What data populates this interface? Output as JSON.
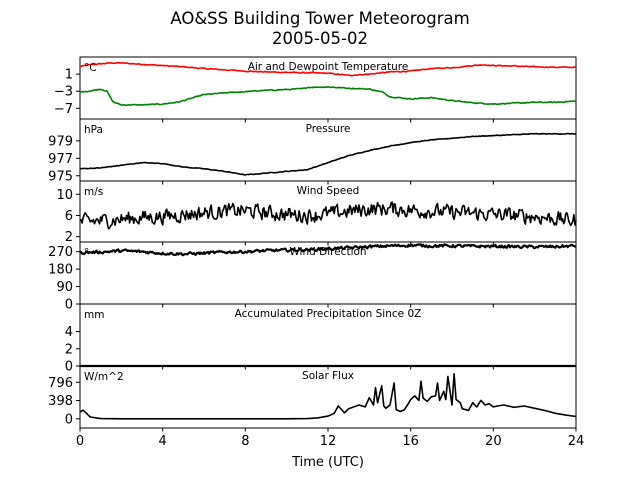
{
  "figure": {
    "title": "AO&SS Building Tower Meteorogram",
    "subtitle": "2005-05-02"
  },
  "chart_data": [
    {
      "type": "line",
      "title": "Air and Dewpoint Temperature",
      "ylabel": "°C",
      "xlim": [
        0,
        24
      ],
      "ylim": [
        -9.5,
        5
      ],
      "yticks": [
        "1",
        "−3",
        "−7"
      ],
      "ytick_values": [
        1,
        -3,
        -7
      ],
      "series": [
        {
          "color": "#ff0000",
          "x": [
            0,
            0.5,
            1,
            1.5,
            2,
            3,
            4,
            5,
            6,
            7,
            8,
            9,
            10,
            11,
            12,
            13,
            14,
            15,
            16,
            17,
            18,
            19,
            19.5,
            20,
            21,
            22,
            23,
            24
          ],
          "y": [
            2.8,
            3.2,
            3.4,
            3.6,
            3.6,
            3.3,
            3.0,
            2.7,
            2.3,
            2.0,
            1.7,
            1.5,
            1.4,
            1.3,
            1.2,
            0.7,
            1.0,
            1.5,
            1.7,
            2.3,
            2.5,
            3.0,
            3.2,
            3.0,
            2.9,
            2.7,
            2.6,
            2.6
          ]
        },
        {
          "color": "#008000",
          "x": [
            0,
            0.4,
            1,
            1.3,
            1.6,
            2,
            3,
            4,
            4.8,
            5.5,
            6,
            7,
            8,
            9,
            10,
            10.8,
            11,
            12,
            13,
            14,
            14.7,
            15,
            16,
            17,
            18,
            19,
            20,
            21,
            22,
            23,
            24
          ],
          "y": [
            -3.2,
            -3.0,
            -2.5,
            -3.0,
            -5.5,
            -6.2,
            -6.2,
            -6.0,
            -5.5,
            -4.5,
            -3.8,
            -3.4,
            -3.1,
            -2.8,
            -2.6,
            -2.4,
            -2.1,
            -2.0,
            -2.3,
            -2.5,
            -3.3,
            -4.3,
            -4.8,
            -4.5,
            -5.2,
            -5.7,
            -6.0,
            -5.8,
            -5.6,
            -5.6,
            -5.3
          ]
        }
      ]
    },
    {
      "type": "line",
      "title": "Pressure",
      "ylabel": "hPa",
      "xlim": [
        0,
        24
      ],
      "ylim": [
        974.4,
        981.5
      ],
      "yticks": [
        "979",
        "977",
        "975"
      ],
      "ytick_values": [
        979,
        977,
        975
      ],
      "series": [
        {
          "color": "#000000",
          "x": [
            0,
            1,
            2,
            3,
            4,
            5,
            6,
            7,
            8,
            8.5,
            9,
            10,
            11,
            12,
            13,
            14,
            15,
            16,
            17,
            18,
            19,
            20,
            21,
            22,
            23,
            24
          ],
          "y": [
            975.8,
            975.9,
            976.2,
            976.5,
            976.4,
            976.0,
            975.8,
            975.5,
            975.1,
            975.2,
            975.3,
            975.5,
            975.7,
            976.5,
            977.3,
            977.9,
            978.4,
            978.8,
            979.1,
            979.3,
            979.5,
            979.6,
            979.7,
            979.8,
            979.8,
            979.8
          ]
        }
      ]
    },
    {
      "type": "line",
      "title": "Wind Speed",
      "ylabel": "m/s",
      "xlim": [
        0,
        24
      ],
      "ylim": [
        1,
        12.5
      ],
      "yticks": [
        "10",
        "6",
        "2"
      ],
      "ytick_values": [
        10,
        6,
        2
      ],
      "series": [
        {
          "color": "#000000",
          "x": [
            0,
            1,
            2,
            3,
            4,
            5,
            6,
            7,
            8,
            9,
            10,
            11,
            12,
            13,
            14,
            15,
            16,
            17,
            18,
            19,
            20,
            21,
            22,
            23,
            24
          ],
          "y": [
            4.8,
            5.0,
            5.3,
            5.6,
            5.8,
            6.2,
            6.5,
            6.8,
            6.9,
            6.5,
            6.2,
            6.0,
            6.3,
            6.8,
            7.2,
            7.3,
            7.0,
            6.8,
            6.6,
            6.4,
            6.2,
            6.0,
            5.8,
            5.4,
            5.0
          ]
        }
      ]
    },
    {
      "type": "line",
      "title": "Wind Direction",
      "ylabel": "°",
      "xlim": [
        0,
        24
      ],
      "ylim": [
        0,
        320
      ],
      "yticks": [
        "270",
        "180",
        "90",
        "0"
      ],
      "ytick_values": [
        270,
        180,
        90,
        0
      ],
      "series": [
        {
          "color": "#000000",
          "x": [
            0,
            1,
            2,
            3,
            4,
            5,
            6,
            7,
            8,
            9,
            10,
            11,
            12,
            13,
            14,
            15,
            16,
            17,
            18,
            19,
            20,
            21,
            22,
            23,
            24
          ],
          "y": [
            265,
            268,
            275,
            270,
            262,
            258,
            262,
            268,
            270,
            275,
            278,
            280,
            285,
            290,
            295,
            300,
            303,
            300,
            300,
            298,
            298,
            296,
            295,
            296,
            300
          ]
        }
      ]
    },
    {
      "type": "line",
      "title": "Accumulated Precipitation Since 0Z",
      "ylabel": "mm",
      "xlim": [
        0,
        24
      ],
      "ylim": [
        0,
        7.2
      ],
      "yticks": [
        "4",
        "2",
        "0"
      ],
      "ytick_values": [
        4,
        2,
        0
      ],
      "series": [
        {
          "color": "#000000",
          "x": [
            0,
            24
          ],
          "y": [
            0,
            0
          ]
        }
      ]
    },
    {
      "type": "line",
      "title": "Solar Flux",
      "ylabel": "W/m^2",
      "xlim": [
        0,
        24
      ],
      "ylim": [
        -200,
        1150
      ],
      "yticks": [
        "796",
        "398",
        "0"
      ],
      "ytick_values": [
        796,
        398,
        0
      ],
      "series": [
        {
          "color": "#000000",
          "x": [
            0,
            0.15,
            0.5,
            1,
            2,
            4,
            6,
            8,
            10,
            11,
            11.5,
            12,
            12.3,
            12.5,
            12.8,
            13,
            13.5,
            13.8,
            14,
            14.2,
            14.3,
            14.4,
            14.6,
            14.7,
            14.8,
            15,
            15.2,
            15.3,
            15.5,
            15.7,
            15.9,
            16,
            16.2,
            16.4,
            16.5,
            16.6,
            16.8,
            17,
            17.2,
            17.3,
            17.4,
            17.6,
            17.7,
            17.8,
            18,
            18.1,
            18.2,
            18.4,
            18.5,
            18.8,
            19,
            19.2,
            19.4,
            19.6,
            19.8,
            20,
            20.2,
            20.5,
            21,
            21.5,
            22,
            22.5,
            23,
            23.5,
            24
          ],
          "y": [
            150,
            190,
            40,
            5,
            0,
            0,
            0,
            0,
            0,
            5,
            20,
            60,
            120,
            280,
            130,
            220,
            300,
            260,
            460,
            300,
            680,
            350,
            720,
            280,
            230,
            300,
            780,
            200,
            160,
            200,
            340,
            420,
            500,
            400,
            820,
            450,
            380,
            480,
            500,
            780,
            400,
            600,
            420,
            920,
            300,
            980,
            420,
            350,
            220,
            180,
            350,
            260,
            400,
            300,
            330,
            260,
            280,
            300,
            250,
            280,
            230,
            180,
            120,
            80,
            50
          ]
        }
      ]
    }
  ],
  "xaxis": {
    "label": "Time (UTC)",
    "ticks": [
      "0",
      "4",
      "8",
      "12",
      "16",
      "20",
      "24"
    ],
    "tick_values": [
      0,
      4,
      8,
      12,
      16,
      20,
      24
    ]
  }
}
